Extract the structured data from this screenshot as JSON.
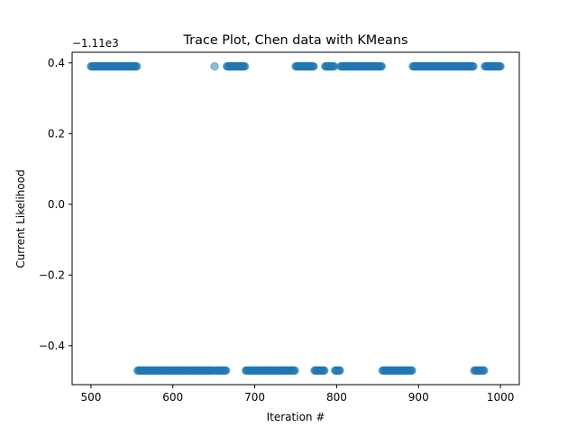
{
  "chart_data": {
    "type": "scatter",
    "title": "Trace Plot, Chen data with KMeans",
    "xlabel": "Iteration #",
    "ylabel": "Current Likelihood",
    "offset_text": "−1.11e3",
    "xlim": [
      477,
      1023
    ],
    "ylim": [
      -0.51,
      0.43
    ],
    "xticks": [
      500,
      600,
      700,
      800,
      900,
      1000
    ],
    "xtick_labels": [
      "500",
      "600",
      "700",
      "800",
      "900",
      "1000"
    ],
    "yticks": [
      0.4,
      0.2,
      0.0,
      -0.2,
      -0.4
    ],
    "ytick_labels": [
      "0.4",
      "0.2",
      "0.0",
      "−0.2",
      "−0.4"
    ],
    "grid": false,
    "marker_color": "#1f77b4",
    "marker_alpha": 0.5,
    "levels": [
      0.39,
      -0.47
    ],
    "runs": [
      {
        "level": 0.39,
        "start": 500,
        "end": 556
      },
      {
        "level": -0.47,
        "start": 557,
        "end": 649
      },
      {
        "level": 0.39,
        "start": 651,
        "end": 651
      },
      {
        "level": -0.47,
        "start": 652,
        "end": 665
      },
      {
        "level": 0.39,
        "start": 666,
        "end": 688
      },
      {
        "level": -0.47,
        "start": 689,
        "end": 749
      },
      {
        "level": 0.39,
        "start": 750,
        "end": 772
      },
      {
        "level": -0.47,
        "start": 773,
        "end": 785
      },
      {
        "level": 0.39,
        "start": 786,
        "end": 797
      },
      {
        "level": -0.47,
        "start": 798,
        "end": 804
      },
      {
        "level": 0.39,
        "start": 805,
        "end": 855
      },
      {
        "level": -0.47,
        "start": 856,
        "end": 892
      },
      {
        "level": 0.39,
        "start": 893,
        "end": 967
      },
      {
        "level": -0.47,
        "start": 968,
        "end": 980
      },
      {
        "level": 0.39,
        "start": 981,
        "end": 1000
      }
    ]
  }
}
